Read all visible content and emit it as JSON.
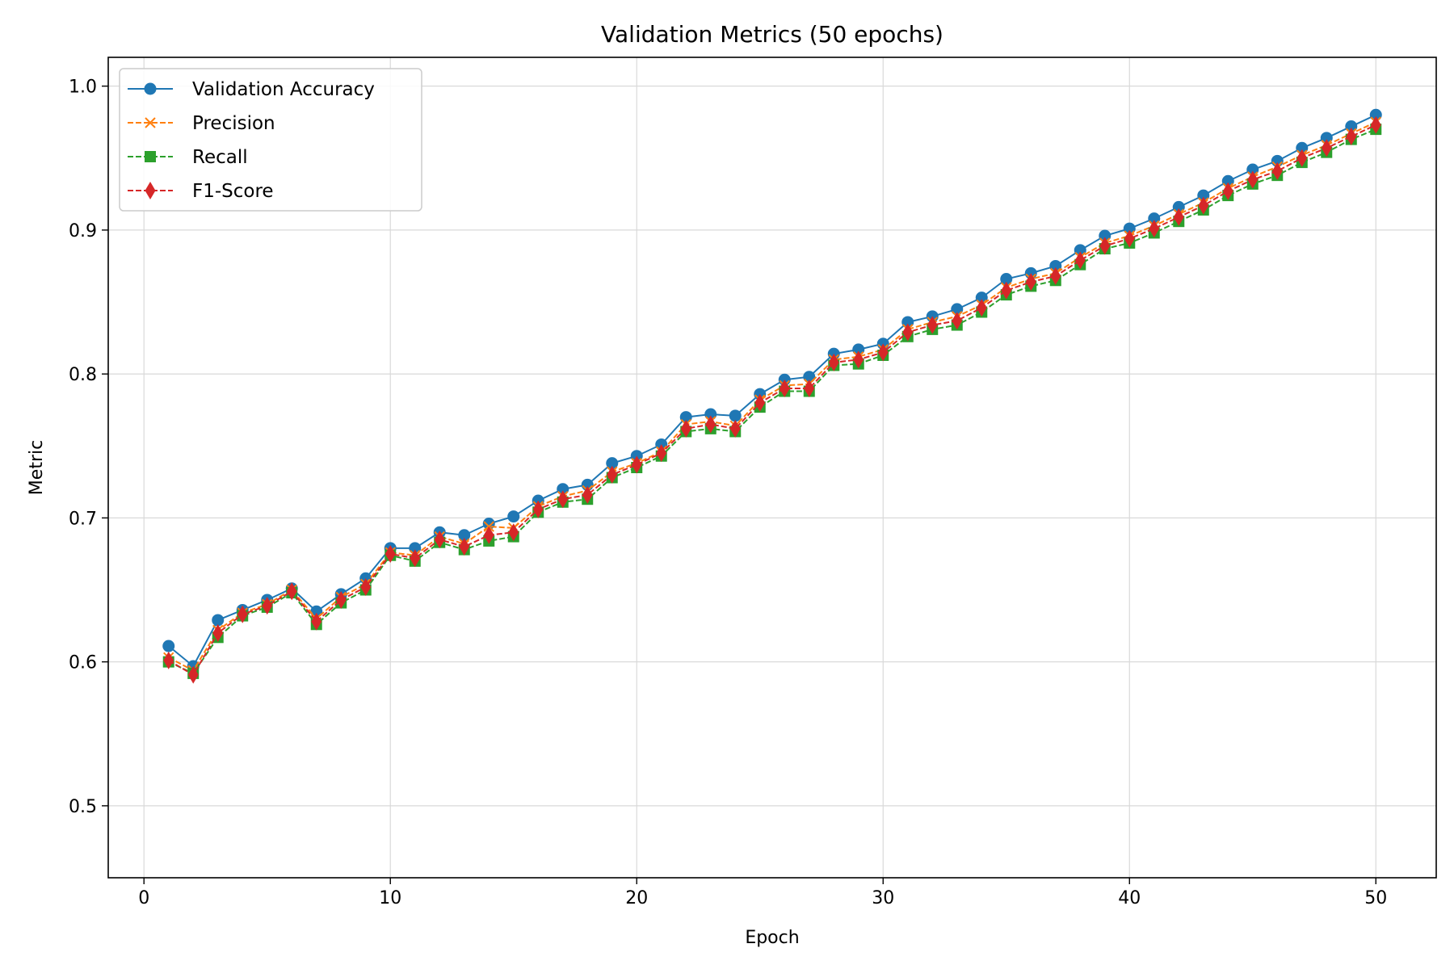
{
  "chart_data": {
    "type": "line",
    "title": "Validation Metrics (50 epochs)",
    "xlabel": "Epoch",
    "ylabel": "Metric",
    "xlim": [
      -1.45,
      52.45
    ],
    "ylim": [
      0.45,
      1.02
    ],
    "xticks": [
      0,
      10,
      20,
      30,
      40,
      50
    ],
    "yticks": [
      0.5,
      0.6,
      0.7,
      0.8,
      0.9,
      1.0
    ],
    "xtick_labels": [
      "0",
      "10",
      "20",
      "30",
      "40",
      "50"
    ],
    "ytick_labels": [
      "0.5",
      "0.6",
      "0.7",
      "0.8",
      "0.9",
      "1.0"
    ],
    "grid": true,
    "legend_position": "top-left",
    "x": [
      1,
      2,
      3,
      4,
      5,
      6,
      7,
      8,
      9,
      10,
      11,
      12,
      13,
      14,
      15,
      16,
      17,
      18,
      19,
      20,
      21,
      22,
      23,
      24,
      25,
      26,
      27,
      28,
      29,
      30,
      31,
      32,
      33,
      34,
      35,
      36,
      37,
      38,
      39,
      40,
      41,
      42,
      43,
      44,
      45,
      46,
      47,
      48,
      49,
      50
    ],
    "series": [
      {
        "name": "Validation Accuracy",
        "color": "#1f77b4",
        "line_style": "solid",
        "marker": "circle",
        "values": [
          0.611,
          0.597,
          0.629,
          0.636,
          0.643,
          0.651,
          0.635,
          0.647,
          0.658,
          0.679,
          0.679,
          0.69,
          0.688,
          0.696,
          0.701,
          0.712,
          0.72,
          0.723,
          0.738,
          0.743,
          0.751,
          0.77,
          0.772,
          0.771,
          0.786,
          0.796,
          0.798,
          0.814,
          0.817,
          0.821,
          0.836,
          0.84,
          0.845,
          0.853,
          0.866,
          0.87,
          0.875,
          0.886,
          0.896,
          0.901,
          0.908,
          0.916,
          0.924,
          0.934,
          0.942,
          0.948,
          0.957,
          0.964,
          0.972,
          0.98
        ]
      },
      {
        "name": "Precision",
        "color": "#ff7f0e",
        "line_style": "dashed",
        "marker": "x",
        "values": [
          0.603,
          0.594,
          0.622,
          0.634,
          0.64,
          0.65,
          0.63,
          0.645,
          0.654,
          0.676,
          0.674,
          0.687,
          0.682,
          0.694,
          0.693,
          0.708,
          0.715,
          0.719,
          0.732,
          0.738,
          0.746,
          0.765,
          0.767,
          0.764,
          0.782,
          0.792,
          0.793,
          0.81,
          0.812,
          0.817,
          0.831,
          0.836,
          0.84,
          0.848,
          0.86,
          0.866,
          0.87,
          0.881,
          0.891,
          0.896,
          0.903,
          0.911,
          0.919,
          0.929,
          0.937,
          0.944,
          0.952,
          0.959,
          0.967,
          0.975
        ]
      },
      {
        "name": "Recall",
        "color": "#2ca02c",
        "line_style": "dashed",
        "marker": "square",
        "values": [
          0.6,
          0.592,
          0.617,
          0.632,
          0.638,
          0.648,
          0.626,
          0.641,
          0.65,
          0.674,
          0.67,
          0.683,
          0.678,
          0.684,
          0.687,
          0.704,
          0.711,
          0.713,
          0.728,
          0.735,
          0.743,
          0.76,
          0.762,
          0.76,
          0.777,
          0.788,
          0.788,
          0.806,
          0.807,
          0.813,
          0.826,
          0.831,
          0.834,
          0.843,
          0.855,
          0.861,
          0.865,
          0.876,
          0.887,
          0.891,
          0.898,
          0.906,
          0.914,
          0.924,
          0.932,
          0.938,
          0.947,
          0.954,
          0.963,
          0.97
        ]
      },
      {
        "name": "F1-Score",
        "color": "#d62728",
        "line_style": "dashed",
        "marker": "diamond",
        "values": [
          0.601,
          0.591,
          0.62,
          0.633,
          0.639,
          0.649,
          0.628,
          0.643,
          0.652,
          0.675,
          0.672,
          0.685,
          0.68,
          0.688,
          0.69,
          0.706,
          0.713,
          0.716,
          0.73,
          0.737,
          0.745,
          0.762,
          0.765,
          0.762,
          0.78,
          0.79,
          0.79,
          0.808,
          0.81,
          0.815,
          0.829,
          0.834,
          0.837,
          0.846,
          0.858,
          0.864,
          0.868,
          0.879,
          0.889,
          0.894,
          0.901,
          0.909,
          0.917,
          0.927,
          0.935,
          0.941,
          0.95,
          0.957,
          0.965,
          0.973
        ]
      }
    ]
  }
}
